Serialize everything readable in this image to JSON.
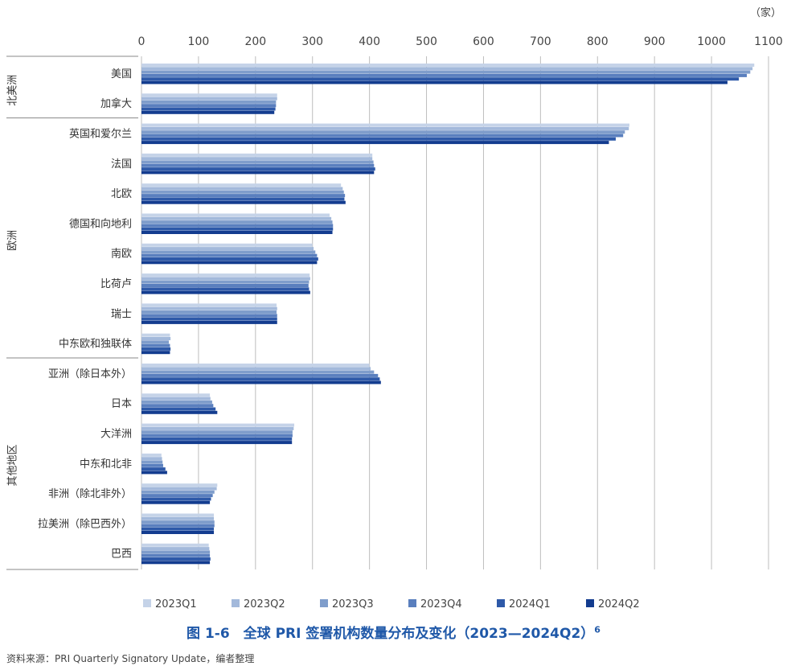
{
  "chart_data": {
    "type": "bar",
    "orientation": "horizontal",
    "unit": "（家）",
    "xlim": [
      0,
      1100
    ],
    "ticks": [
      0,
      100,
      200,
      300,
      400,
      500,
      600,
      700,
      800,
      900,
      1000,
      1100
    ],
    "grid": true,
    "legend_position": "bottom",
    "categories": [
      "美国",
      "加拿大",
      "英国和爱尔兰",
      "法国",
      "北欧",
      "德国和向地利",
      "南欧",
      "比荷卢",
      "瑞士",
      "中东欧和独联体",
      "亚洲（除日本外）",
      "日本",
      "大洋洲",
      "中东和北非",
      "非洲（除北非外）",
      "拉美洲（除巴西外）",
      "巴西"
    ],
    "groups": [
      {
        "name": "北美洲",
        "count": 2
      },
      {
        "name": "欧洲",
        "count": 8
      },
      {
        "name": "其他地区",
        "count": 7
      }
    ],
    "series": [
      {
        "name": "2023Q1",
        "color": "#c5d3e8",
        "values": [
          1075,
          238,
          856,
          405,
          350,
          330,
          300,
          295,
          237,
          50,
          400,
          120,
          268,
          35,
          133,
          127,
          118
        ]
      },
      {
        "name": "2023Q2",
        "color": "#a3b9db",
        "values": [
          1072,
          238,
          855,
          405,
          353,
          333,
          302,
          296,
          238,
          51,
          402,
          121,
          267,
          36,
          132,
          127,
          119
        ]
      },
      {
        "name": "2023Q3",
        "color": "#7f9dcb",
        "values": [
          1068,
          236,
          848,
          407,
          355,
          335,
          305,
          294,
          237,
          48,
          408,
          124,
          265,
          37,
          128,
          128,
          120
        ]
      },
      {
        "name": "2023Q4",
        "color": "#5a7fbe",
        "values": [
          1062,
          236,
          845,
          408,
          357,
          336,
          308,
          293,
          238,
          50,
          415,
          126,
          265,
          38,
          125,
          128,
          120
        ]
      },
      {
        "name": "2024Q1",
        "color": "#2e59a8",
        "values": [
          1048,
          235,
          832,
          410,
          356,
          336,
          310,
          294,
          238,
          51,
          418,
          130,
          264,
          42,
          122,
          127,
          121
        ]
      },
      {
        "name": "2024Q2",
        "color": "#133c8f",
        "values": [
          1028,
          233,
          820,
          408,
          358,
          335,
          308,
          296,
          238,
          50,
          420,
          133,
          264,
          45,
          120,
          127,
          120
        ]
      }
    ]
  },
  "caption": {
    "title": "图 1-6　全球 PRI 签署机构数量分布及变化（2023—2024Q2）",
    "footnote": "6"
  },
  "source": "资料来源：PRI Quarterly Signatory Update，编者整理",
  "colors": {
    "caption": "#1f58a8",
    "grid": "#bdbdbd"
  }
}
